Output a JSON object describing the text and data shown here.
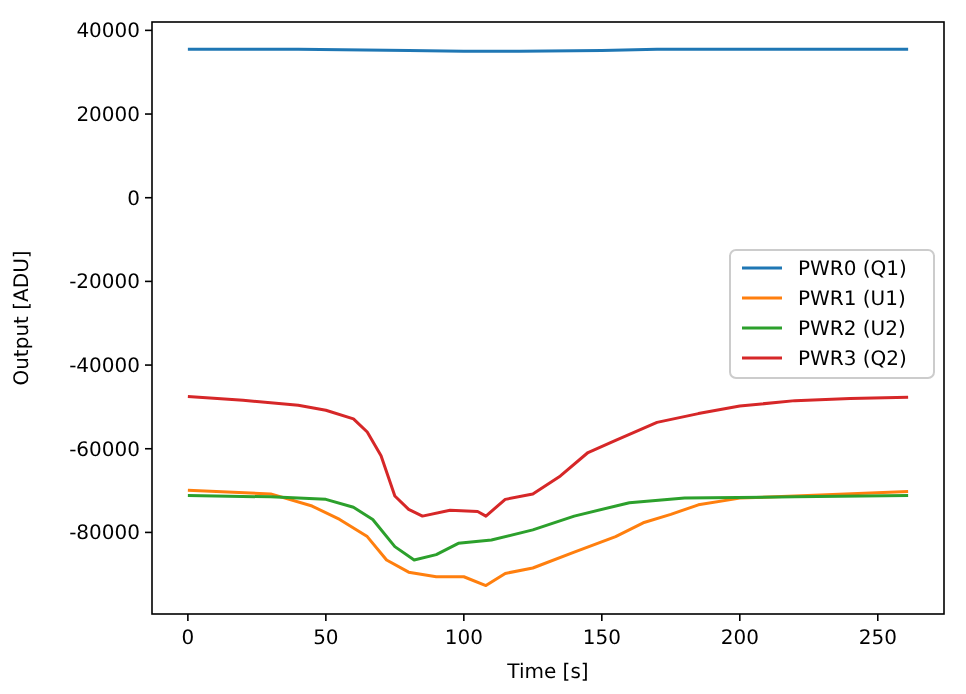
{
  "chart_data": {
    "type": "line",
    "xlabel": "Time [s]",
    "ylabel": "Output [ADU]",
    "xlim": [
      -13,
      274
    ],
    "ylim": [
      -99500,
      42000
    ],
    "xticks": [
      0,
      50,
      100,
      150,
      200,
      250
    ],
    "yticks": [
      -80000,
      -60000,
      -40000,
      -20000,
      0,
      20000,
      40000
    ],
    "legend": "right",
    "grid": false,
    "series": [
      {
        "name": "PWR0 (Q1)",
        "color": "#1f77b4",
        "x": [
          0,
          40,
          80,
          100,
          120,
          150,
          170,
          220,
          261
        ],
        "values": [
          35500,
          35500,
          35200,
          35000,
          35000,
          35200,
          35500,
          35500,
          35500
        ]
      },
      {
        "name": "PWR1 (U1)",
        "color": "#ff7f0e",
        "x": [
          0,
          30,
          45,
          55,
          65,
          72,
          80,
          90,
          100,
          108,
          115,
          125,
          140,
          155,
          165,
          175,
          185,
          200,
          220,
          261
        ],
        "values": [
          -69900,
          -70800,
          -73700,
          -76900,
          -81000,
          -86600,
          -89500,
          -90600,
          -90600,
          -92700,
          -89800,
          -88500,
          -84700,
          -81000,
          -77700,
          -75700,
          -73400,
          -71800,
          -71300,
          -70200
        ]
      },
      {
        "name": "PWR2 (U2)",
        "color": "#2ca02c",
        "x": [
          0,
          30,
          50,
          60,
          67,
          75,
          82,
          90,
          98,
          110,
          125,
          140,
          160,
          180,
          220,
          261
        ],
        "values": [
          -71200,
          -71500,
          -72100,
          -74000,
          -76900,
          -83400,
          -86600,
          -85300,
          -82600,
          -81800,
          -79400,
          -76100,
          -72900,
          -71800,
          -71500,
          -71200
        ]
      },
      {
        "name": "PWR3 (Q2)",
        "color": "#d62728",
        "x": [
          0,
          20,
          40,
          50,
          60,
          65,
          70,
          75,
          80,
          85,
          95,
          105,
          108,
          115,
          125,
          135,
          145,
          155,
          170,
          185,
          200,
          220,
          240,
          261
        ],
        "values": [
          -47500,
          -48400,
          -49600,
          -50800,
          -52850,
          -56000,
          -61700,
          -71300,
          -74500,
          -76100,
          -74700,
          -75000,
          -76100,
          -72100,
          -70800,
          -66500,
          -60900,
          -58000,
          -53700,
          -51600,
          -49800,
          -48500,
          -48000,
          -47700
        ]
      }
    ]
  }
}
